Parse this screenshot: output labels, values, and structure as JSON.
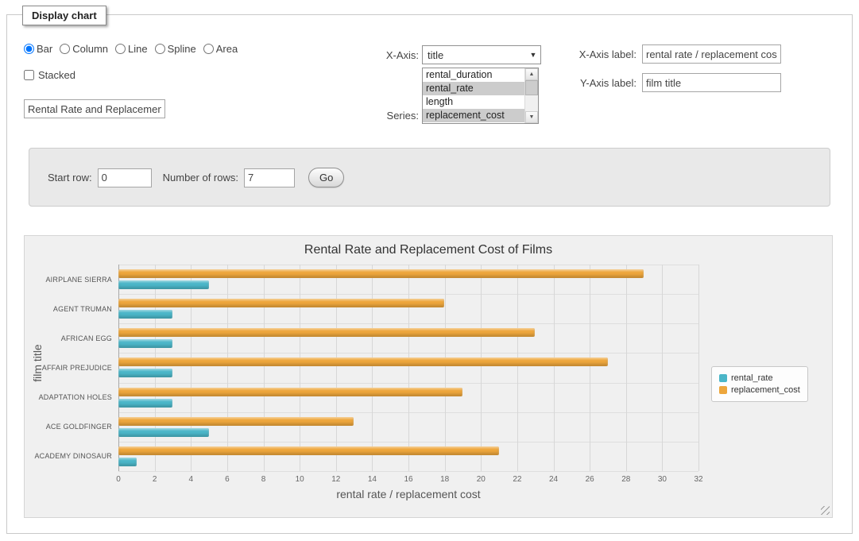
{
  "panel": {
    "legend": "Display chart"
  },
  "chart_type": {
    "options": [
      {
        "label": "Bar",
        "checked": true
      },
      {
        "label": "Column",
        "checked": false
      },
      {
        "label": "Line",
        "checked": false
      },
      {
        "label": "Spline",
        "checked": false
      },
      {
        "label": "Area",
        "checked": false
      }
    ],
    "stacked_label": "Stacked",
    "stacked_checked": false
  },
  "title_input": {
    "value": "Rental Rate and Replacement Cost of Films"
  },
  "x_axis_select": {
    "label": "X-Axis:",
    "value": "title"
  },
  "series_select": {
    "label": "Series:",
    "options": [
      {
        "label": "rental_duration",
        "selected": false
      },
      {
        "label": "rental_rate",
        "selected": true
      },
      {
        "label": "length",
        "selected": false
      },
      {
        "label": "replacement_cost",
        "selected": true
      }
    ]
  },
  "x_axis_label_field": {
    "label": "X-Axis label:",
    "value": "rental rate / replacement cost"
  },
  "y_axis_label_field": {
    "label": "Y-Axis label:",
    "value": "film title"
  },
  "rows_panel": {
    "start_row_label": "Start row:",
    "start_row_value": "0",
    "num_rows_label": "Number of rows:",
    "num_rows_value": "7",
    "go_label": "Go"
  },
  "chart_data": {
    "type": "bar",
    "title": "Rental Rate and Replacement Cost of Films",
    "categories": [
      "AIRPLANE SIERRA",
      "AGENT TRUMAN",
      "AFRICAN EGG",
      "AFFAIR PREJUDICE",
      "ADAPTATION HOLES",
      "ACE GOLDFINGER",
      "ACADEMY DINOSAUR"
    ],
    "series": [
      {
        "name": "rental_rate",
        "color": "#4bb6c8",
        "values": [
          4.99,
          2.99,
          2.99,
          2.99,
          2.99,
          4.99,
          0.99
        ]
      },
      {
        "name": "replacement_cost",
        "color": "#eda63c",
        "values": [
          28.99,
          17.99,
          22.99,
          26.99,
          18.99,
          12.99,
          20.99
        ]
      }
    ],
    "xlabel": "rental rate / replacement cost",
    "ylabel": "film title",
    "xlim": [
      0,
      32
    ],
    "tick_step": 2,
    "grid": true,
    "legend_position": "right"
  }
}
